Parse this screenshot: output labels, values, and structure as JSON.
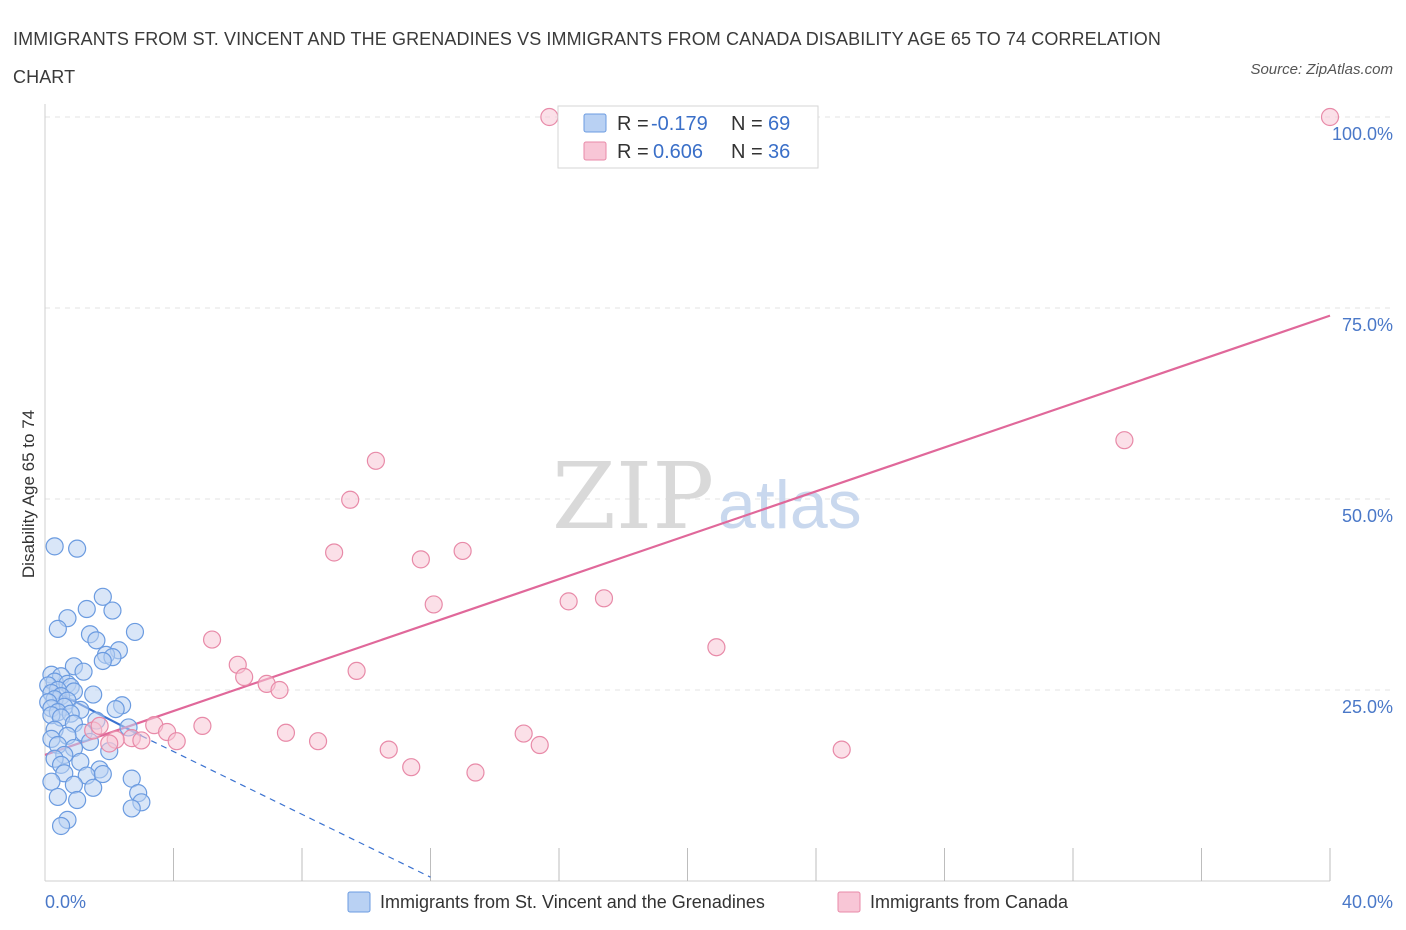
{
  "header": {
    "title": "IMMIGRANTS FROM ST. VINCENT AND THE GRENADINES VS IMMIGRANTS FROM CANADA DISABILITY AGE 65 TO 74 CORRELATION CHART",
    "source": "Source: ZipAtlas.com"
  },
  "watermark": {
    "zip": "ZIP",
    "atlas": "atlas"
  },
  "colors": {
    "blue_fill": "#b9d1f3",
    "blue_stroke": "#6b9be0",
    "blue_line": "#3b72d0",
    "pink_fill": "#f8c6d6",
    "pink_stroke": "#e88aa8",
    "pink_line": "#e0689a",
    "grid": "#e3e3e3",
    "tick_text": "#4a78c8"
  },
  "chart_data": {
    "type": "scatter",
    "title": "IMMIGRANTS FROM ST. VINCENT AND THE GRENADINES VS IMMIGRANTS FROM CANADA DISABILITY AGE 65 TO 74 CORRELATION CHART",
    "xlabel": "",
    "ylabel": "Disability Age 65 to 74",
    "xlim": [
      0,
      40
    ],
    "ylim": [
      0,
      100
    ],
    "x_tick_labels": [
      {
        "value": 0,
        "label": "0.0%"
      },
      {
        "value": 40,
        "label": "40.0%"
      }
    ],
    "y_tick_labels": [
      {
        "value": 25,
        "label": "25.0%"
      },
      {
        "value": 50,
        "label": "50.0%"
      },
      {
        "value": 75,
        "label": "75.0%"
      },
      {
        "value": 100,
        "label": "100.0%"
      }
    ],
    "x_minor_ticks": [
      4,
      8,
      12,
      16,
      20,
      24,
      28,
      32,
      36,
      40
    ],
    "grid_y": [
      25,
      50,
      75,
      100
    ],
    "legend_position": "top-center",
    "stats": [
      {
        "r_label": "R =",
        "r_value": "-0.179",
        "n_label": "N =",
        "n_value": "69"
      },
      {
        "r_label": "R =",
        "r_value": "0.606",
        "n_label": "N =",
        "n_value": "36"
      }
    ],
    "series": [
      {
        "name": "Immigrants from St. Vincent and the Grenadines",
        "color_key": "blue",
        "trend": {
          "x0": 0,
          "y0": 25.5,
          "x1": 3.0,
          "y1": 19.0,
          "dash_x1": 12.0,
          "dash_y1": 0.5
        },
        "points": [
          [
            0.3,
            43.8
          ],
          [
            1.0,
            43.5
          ],
          [
            1.8,
            37.2
          ],
          [
            1.3,
            35.6
          ],
          [
            2.1,
            35.4
          ],
          [
            0.7,
            34.4
          ],
          [
            0.4,
            33.0
          ],
          [
            2.8,
            32.6
          ],
          [
            1.4,
            32.3
          ],
          [
            1.6,
            31.5
          ],
          [
            2.3,
            30.2
          ],
          [
            1.9,
            29.6
          ],
          [
            2.1,
            29.3
          ],
          [
            1.8,
            28.8
          ],
          [
            0.9,
            28.1
          ],
          [
            1.2,
            27.4
          ],
          [
            0.2,
            27.0
          ],
          [
            0.5,
            26.8
          ],
          [
            0.3,
            26.1
          ],
          [
            0.7,
            25.8
          ],
          [
            0.1,
            25.6
          ],
          [
            0.8,
            25.4
          ],
          [
            0.4,
            25.0
          ],
          [
            0.9,
            24.8
          ],
          [
            0.2,
            24.6
          ],
          [
            1.5,
            24.4
          ],
          [
            0.5,
            24.2
          ],
          [
            0.3,
            23.8
          ],
          [
            0.7,
            23.6
          ],
          [
            0.1,
            23.4
          ],
          [
            2.4,
            23.0
          ],
          [
            0.6,
            22.8
          ],
          [
            0.2,
            22.6
          ],
          [
            1.1,
            22.4
          ],
          [
            0.4,
            22.1
          ],
          [
            0.8,
            21.9
          ],
          [
            0.2,
            21.7
          ],
          [
            0.5,
            21.4
          ],
          [
            1.6,
            21.0
          ],
          [
            0.9,
            20.6
          ],
          [
            2.6,
            20.1
          ],
          [
            0.3,
            19.8
          ],
          [
            1.2,
            19.4
          ],
          [
            0.7,
            19.0
          ],
          [
            0.2,
            18.6
          ],
          [
            1.4,
            18.2
          ],
          [
            0.4,
            17.8
          ],
          [
            0.9,
            17.4
          ],
          [
            2.0,
            17.0
          ],
          [
            0.6,
            16.5
          ],
          [
            0.3,
            16.0
          ],
          [
            1.1,
            15.6
          ],
          [
            0.5,
            15.2
          ],
          [
            1.7,
            14.6
          ],
          [
            0.6,
            14.1
          ],
          [
            1.3,
            13.8
          ],
          [
            2.7,
            13.4
          ],
          [
            0.2,
            13.0
          ],
          [
            0.9,
            12.6
          ],
          [
            1.5,
            12.2
          ],
          [
            2.9,
            11.5
          ],
          [
            0.4,
            11.0
          ],
          [
            1.0,
            10.6
          ],
          [
            3.0,
            10.3
          ],
          [
            2.7,
            9.5
          ],
          [
            0.7,
            8.0
          ],
          [
            0.5,
            7.2
          ],
          [
            1.8,
            14.0
          ],
          [
            2.2,
            22.5
          ]
        ]
      },
      {
        "name": "Immigrants from Canada",
        "color_key": "pink",
        "trend": {
          "x0": 0,
          "y0": 16.5,
          "x1": 40,
          "y1": 74.0
        },
        "points": [
          [
            15.7,
            100.0
          ],
          [
            40.0,
            100.0
          ],
          [
            33.6,
            57.7
          ],
          [
            10.3,
            55.0
          ],
          [
            9.5,
            49.9
          ],
          [
            9.0,
            43.0
          ],
          [
            13.0,
            43.2
          ],
          [
            11.7,
            42.1
          ],
          [
            12.1,
            36.2
          ],
          [
            17.4,
            37.0
          ],
          [
            16.3,
            36.6
          ],
          [
            5.2,
            31.6
          ],
          [
            20.9,
            30.6
          ],
          [
            6.0,
            28.3
          ],
          [
            9.7,
            27.5
          ],
          [
            6.2,
            26.7
          ],
          [
            6.9,
            25.8
          ],
          [
            7.3,
            25.0
          ],
          [
            3.4,
            20.4
          ],
          [
            4.9,
            20.3
          ],
          [
            1.5,
            19.7
          ],
          [
            3.8,
            19.5
          ],
          [
            7.5,
            19.4
          ],
          [
            14.9,
            19.3
          ],
          [
            4.1,
            18.3
          ],
          [
            8.5,
            18.3
          ],
          [
            2.7,
            18.7
          ],
          [
            2.2,
            18.5
          ],
          [
            15.4,
            17.8
          ],
          [
            10.7,
            17.2
          ],
          [
            24.8,
            17.2
          ],
          [
            11.4,
            14.9
          ],
          [
            13.4,
            14.2
          ],
          [
            2.0,
            18.0
          ],
          [
            3.0,
            18.4
          ],
          [
            1.7,
            20.3
          ]
        ]
      }
    ]
  },
  "legend": {
    "items": [
      {
        "label": "Immigrants from St. Vincent and the Grenadines",
        "color_key": "blue"
      },
      {
        "label": "Immigrants from Canada",
        "color_key": "pink"
      }
    ]
  }
}
